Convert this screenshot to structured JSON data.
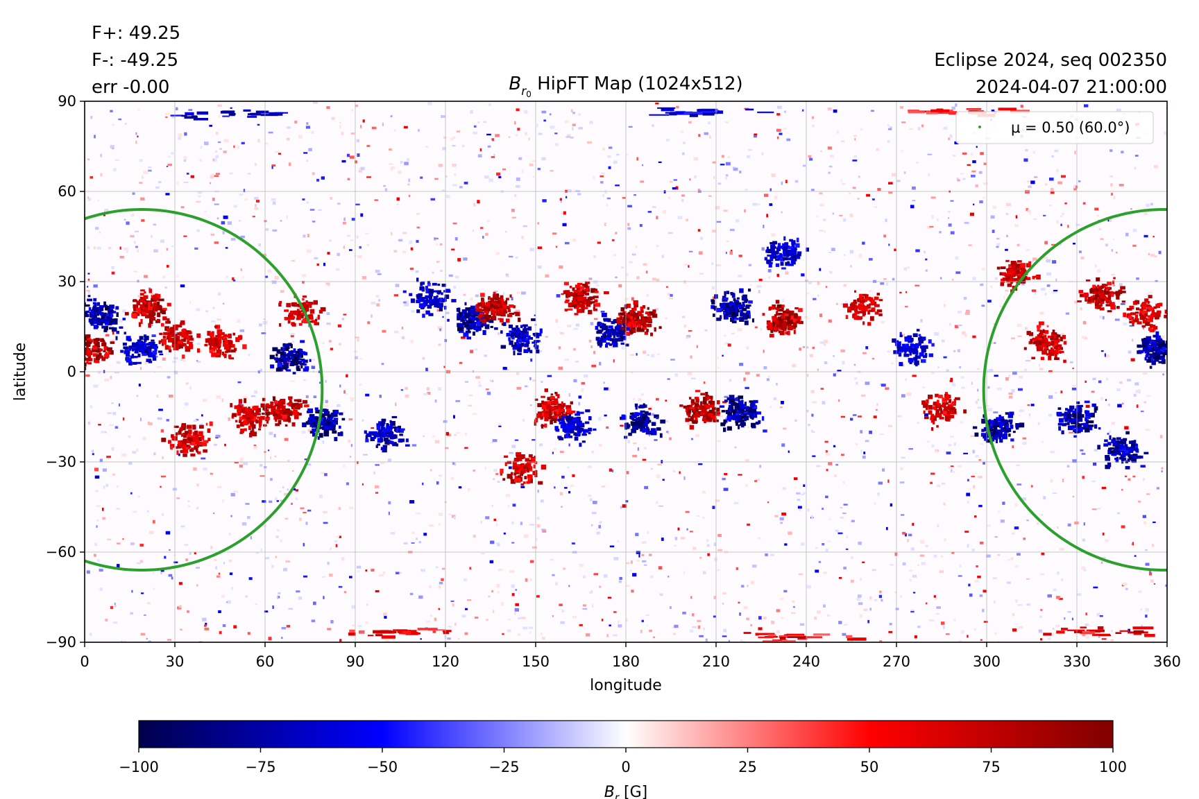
{
  "header": {
    "flux_pos": "F+: 49.25",
    "flux_neg": "F-: -49.25",
    "err": "err -0.00",
    "source": "Eclipse 2024, seq 002350",
    "datetime": "2024-04-07 21:00:00"
  },
  "chart_data": {
    "type": "heatmap",
    "title_var": "B",
    "title_sub": "r",
    "title_subsub": "0",
    "title_rest": " HipFT Map (1024x512)",
    "xlabel": "longitude",
    "ylabel": "latitude",
    "xlim": [
      0,
      360
    ],
    "ylim": [
      -90,
      90
    ],
    "xticks": [
      0,
      30,
      60,
      90,
      120,
      150,
      180,
      210,
      240,
      270,
      300,
      330,
      360
    ],
    "yticks": [
      -90,
      -60,
      -30,
      0,
      30,
      60,
      90
    ],
    "xtick_labels": [
      "0",
      "30",
      "60",
      "90",
      "120",
      "150",
      "180",
      "210",
      "240",
      "270",
      "300",
      "330",
      "360"
    ],
    "ytick_labels": [
      "−90",
      "−60",
      "−30",
      "0",
      "30",
      "60",
      "90"
    ],
    "grid": true,
    "colormap": "seismic",
    "colors": {
      "negative_max": "#00004c",
      "negative": "#0000ff",
      "zero": "#ffffff",
      "positive": "#ff0000",
      "positive_max": "#800000",
      "contour": "#2ca02c"
    },
    "contour": {
      "legend": "μ = 0.50 (60.0°)",
      "legend_placement": "top-right",
      "mu": 0.5,
      "angle_deg": 60.0,
      "center_lon": [
        19,
        359
      ],
      "center_lat": -6,
      "lat_range": [
        -66,
        54
      ],
      "lon_half_width": 60
    },
    "active_regions": [
      {
        "lon": 5,
        "lat": 20,
        "polarity": -1,
        "strength": 0.9
      },
      {
        "lon": 2,
        "lat": 8,
        "polarity": 1,
        "strength": 1.0
      },
      {
        "lon": 20,
        "lat": 22,
        "polarity": 1,
        "strength": 0.9
      },
      {
        "lon": 30,
        "lat": 12,
        "polarity": 1,
        "strength": 0.7
      },
      {
        "lon": 18,
        "lat": 8,
        "polarity": -1,
        "strength": 0.6
      },
      {
        "lon": 45,
        "lat": 10,
        "polarity": 1,
        "strength": 0.6
      },
      {
        "lon": 68,
        "lat": 5,
        "polarity": -1,
        "strength": 1.0
      },
      {
        "lon": 72,
        "lat": 20,
        "polarity": 1,
        "strength": 0.6
      },
      {
        "lon": 34,
        "lat": -22,
        "polarity": 1,
        "strength": 0.8
      },
      {
        "lon": 55,
        "lat": -14,
        "polarity": 1,
        "strength": 0.7
      },
      {
        "lon": 66,
        "lat": -12,
        "polarity": 1,
        "strength": 0.9
      },
      {
        "lon": 79,
        "lat": -16,
        "polarity": -1,
        "strength": 1.0
      },
      {
        "lon": 100,
        "lat": -20,
        "polarity": -1,
        "strength": 0.8
      },
      {
        "lon": 115,
        "lat": 25,
        "polarity": -1,
        "strength": 0.6
      },
      {
        "lon": 128,
        "lat": 18,
        "polarity": -1,
        "strength": 0.9
      },
      {
        "lon": 136,
        "lat": 22,
        "polarity": 1,
        "strength": 0.9
      },
      {
        "lon": 145,
        "lat": 12,
        "polarity": -1,
        "strength": 0.7
      },
      {
        "lon": 155,
        "lat": -12,
        "polarity": 1,
        "strength": 0.9
      },
      {
        "lon": 162,
        "lat": -18,
        "polarity": -1,
        "strength": 0.6
      },
      {
        "lon": 145,
        "lat": -32,
        "polarity": 1,
        "strength": 0.7
      },
      {
        "lon": 165,
        "lat": 25,
        "polarity": 1,
        "strength": 0.8
      },
      {
        "lon": 175,
        "lat": 14,
        "polarity": -1,
        "strength": 0.8
      },
      {
        "lon": 183,
        "lat": 18,
        "polarity": 1,
        "strength": 1.0
      },
      {
        "lon": 185,
        "lat": -16,
        "polarity": -1,
        "strength": 0.9
      },
      {
        "lon": 205,
        "lat": -12,
        "polarity": 1,
        "strength": 1.0
      },
      {
        "lon": 218,
        "lat": -13,
        "polarity": -1,
        "strength": 1.0
      },
      {
        "lon": 215,
        "lat": 22,
        "polarity": -1,
        "strength": 1.0
      },
      {
        "lon": 232,
        "lat": 18,
        "polarity": 1,
        "strength": 1.0
      },
      {
        "lon": 232,
        "lat": 40,
        "polarity": -1,
        "strength": 0.6
      },
      {
        "lon": 258,
        "lat": 22,
        "polarity": 1,
        "strength": 0.6
      },
      {
        "lon": 275,
        "lat": 8,
        "polarity": -1,
        "strength": 0.5
      },
      {
        "lon": 285,
        "lat": -12,
        "polarity": 1,
        "strength": 0.6
      },
      {
        "lon": 303,
        "lat": -18,
        "polarity": -1,
        "strength": 0.9
      },
      {
        "lon": 310,
        "lat": 33,
        "polarity": 1,
        "strength": 0.7
      },
      {
        "lon": 320,
        "lat": 10,
        "polarity": 1,
        "strength": 0.8
      },
      {
        "lon": 330,
        "lat": -15,
        "polarity": -1,
        "strength": 0.9
      },
      {
        "lon": 345,
        "lat": -26,
        "polarity": -1,
        "strength": 0.8
      },
      {
        "lon": 338,
        "lat": 26,
        "polarity": 1,
        "strength": 0.8
      },
      {
        "lon": 356,
        "lat": 8,
        "polarity": -1,
        "strength": 1.0
      },
      {
        "lon": 352,
        "lat": 20,
        "polarity": 1,
        "strength": 0.6
      }
    ],
    "polar_bands": [
      {
        "lon": 50,
        "lat": 86,
        "polarity": -1,
        "strength": 0.9
      },
      {
        "lon": 200,
        "lat": 87,
        "polarity": -1,
        "strength": 0.8
      },
      {
        "lon": 290,
        "lat": 87,
        "polarity": 1,
        "strength": 0.6
      },
      {
        "lon": 100,
        "lat": -86,
        "polarity": 1,
        "strength": 0.8
      },
      {
        "lon": 235,
        "lat": -88,
        "polarity": 1,
        "strength": 1.0
      },
      {
        "lon": 335,
        "lat": -86,
        "polarity": 1,
        "strength": 0.9
      }
    ]
  },
  "colorbar": {
    "label_var": "B",
    "label_sub": "r",
    "label_unit": " [G]",
    "vmin": -100,
    "vmax": 100,
    "ticks": [
      -100,
      -75,
      -50,
      -25,
      0,
      25,
      50,
      75,
      100
    ],
    "tick_labels": [
      "−100",
      "−75",
      "−50",
      "−25",
      "0",
      "25",
      "50",
      "75",
      "100"
    ]
  }
}
